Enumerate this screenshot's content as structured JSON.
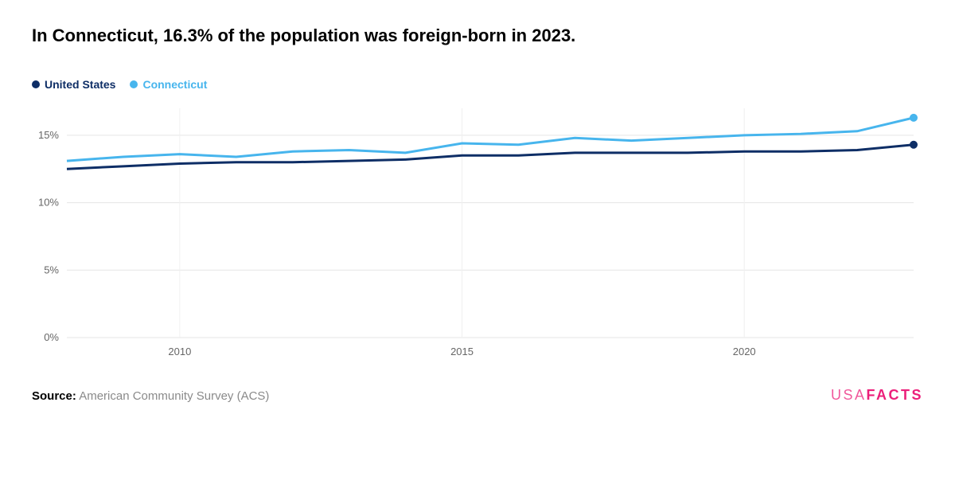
{
  "title": "In Connecticut, 16.3% of the population was foreign-born in 2023.",
  "legend": {
    "items": [
      {
        "label": "United States",
        "color": "#0e2e66"
      },
      {
        "label": "Connecticut",
        "color": "#47b5ed"
      }
    ]
  },
  "chart": {
    "type": "line",
    "background_color": "#ffffff",
    "grid_color": "#e5e5e5",
    "vgrid_color": "#f0f0f0",
    "axis_label_color": "#666666",
    "axis_fontsize": 13,
    "line_width": 3,
    "end_marker_radius": 5,
    "x": {
      "min": 2008,
      "max": 2023,
      "ticks": [
        2010,
        2015,
        2020
      ]
    },
    "y": {
      "min": 0,
      "max": 17,
      "ticks": [
        0,
        5,
        10,
        15
      ],
      "suffix": "%"
    },
    "series": [
      {
        "name": "United States",
        "color": "#0e2e66",
        "data": [
          [
            2008,
            12.5
          ],
          [
            2009,
            12.7
          ],
          [
            2010,
            12.9
          ],
          [
            2011,
            13.0
          ],
          [
            2012,
            13.0
          ],
          [
            2013,
            13.1
          ],
          [
            2014,
            13.2
          ],
          [
            2015,
            13.5
          ],
          [
            2016,
            13.5
          ],
          [
            2017,
            13.7
          ],
          [
            2018,
            13.7
          ],
          [
            2019,
            13.7
          ],
          [
            2020,
            13.8
          ],
          [
            2021,
            13.8
          ],
          [
            2022,
            13.9
          ],
          [
            2023,
            14.3
          ]
        ]
      },
      {
        "name": "Connecticut",
        "color": "#47b5ed",
        "data": [
          [
            2008,
            13.1
          ],
          [
            2009,
            13.4
          ],
          [
            2010,
            13.6
          ],
          [
            2011,
            13.4
          ],
          [
            2012,
            13.8
          ],
          [
            2013,
            13.9
          ],
          [
            2014,
            13.7
          ],
          [
            2015,
            14.4
          ],
          [
            2016,
            14.3
          ],
          [
            2017,
            14.8
          ],
          [
            2018,
            14.6
          ],
          [
            2019,
            14.8
          ],
          [
            2020,
            15.0
          ],
          [
            2021,
            15.1
          ],
          [
            2022,
            15.3
          ],
          [
            2023,
            16.3
          ]
        ]
      }
    ]
  },
  "footer": {
    "source_label": "Source:",
    "source_text": "American Community Survey (ACS)",
    "brand_left": "USA",
    "brand_right": "FACTS",
    "brand_color": "#ec1f7a"
  }
}
